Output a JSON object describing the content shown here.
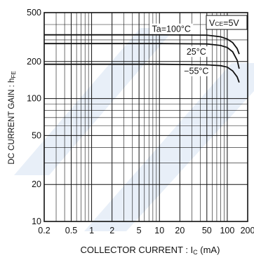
{
  "chart_data": {
    "type": "line",
    "xlabel": "COLLECTOR  CURRENT : I",
    "xlabel_sub": "C",
    "xlabel_unit": " (mA)",
    "ylabel": "DC  CURRENT  GAIN : h",
    "ylabel_sub": "FE",
    "x_scale": "log",
    "y_scale": "log",
    "xlim": [
      0.2,
      200
    ],
    "ylim": [
      10,
      500
    ],
    "x_ticks": [
      {
        "value": 0.2,
        "label": "0.2"
      },
      {
        "value": 0.5,
        "label": "0.5"
      },
      {
        "value": 1,
        "label": "1"
      },
      {
        "value": 2,
        "label": "2"
      },
      {
        "value": 5,
        "label": "5"
      },
      {
        "value": 10,
        "label": "10"
      },
      {
        "value": 20,
        "label": "20"
      },
      {
        "value": 50,
        "label": "50"
      },
      {
        "value": 100,
        "label": "100"
      },
      {
        "value": 200,
        "label": "200"
      }
    ],
    "y_ticks": [
      {
        "value": 10,
        "label": "10"
      },
      {
        "value": 20,
        "label": "20"
      },
      {
        "value": 50,
        "label": "50"
      },
      {
        "value": 100,
        "label": "100"
      },
      {
        "value": 200,
        "label": "200"
      },
      {
        "value": 500,
        "label": "500"
      }
    ],
    "grid": true,
    "condition_label": {
      "main": "V",
      "sub": "CE",
      "rest": "=5V"
    },
    "series": [
      {
        "name": "Ta=100°C",
        "x": [
          0.2,
          10,
          50,
          80,
          100,
          120,
          140,
          150
        ],
        "y": [
          330,
          330,
          328,
          318,
          305,
          285,
          255,
          230
        ]
      },
      {
        "name": "25°C",
        "x": [
          0.2,
          10,
          50,
          80,
          100,
          120,
          140,
          150
        ],
        "y": [
          280,
          280,
          278,
          270,
          260,
          240,
          205,
          175
        ]
      },
      {
        "name": "−55°C",
        "x": [
          0.2,
          10,
          50,
          80,
          100,
          120,
          140,
          150
        ],
        "y": [
          190,
          190,
          188,
          185,
          180,
          168,
          150,
          135
        ]
      }
    ]
  }
}
